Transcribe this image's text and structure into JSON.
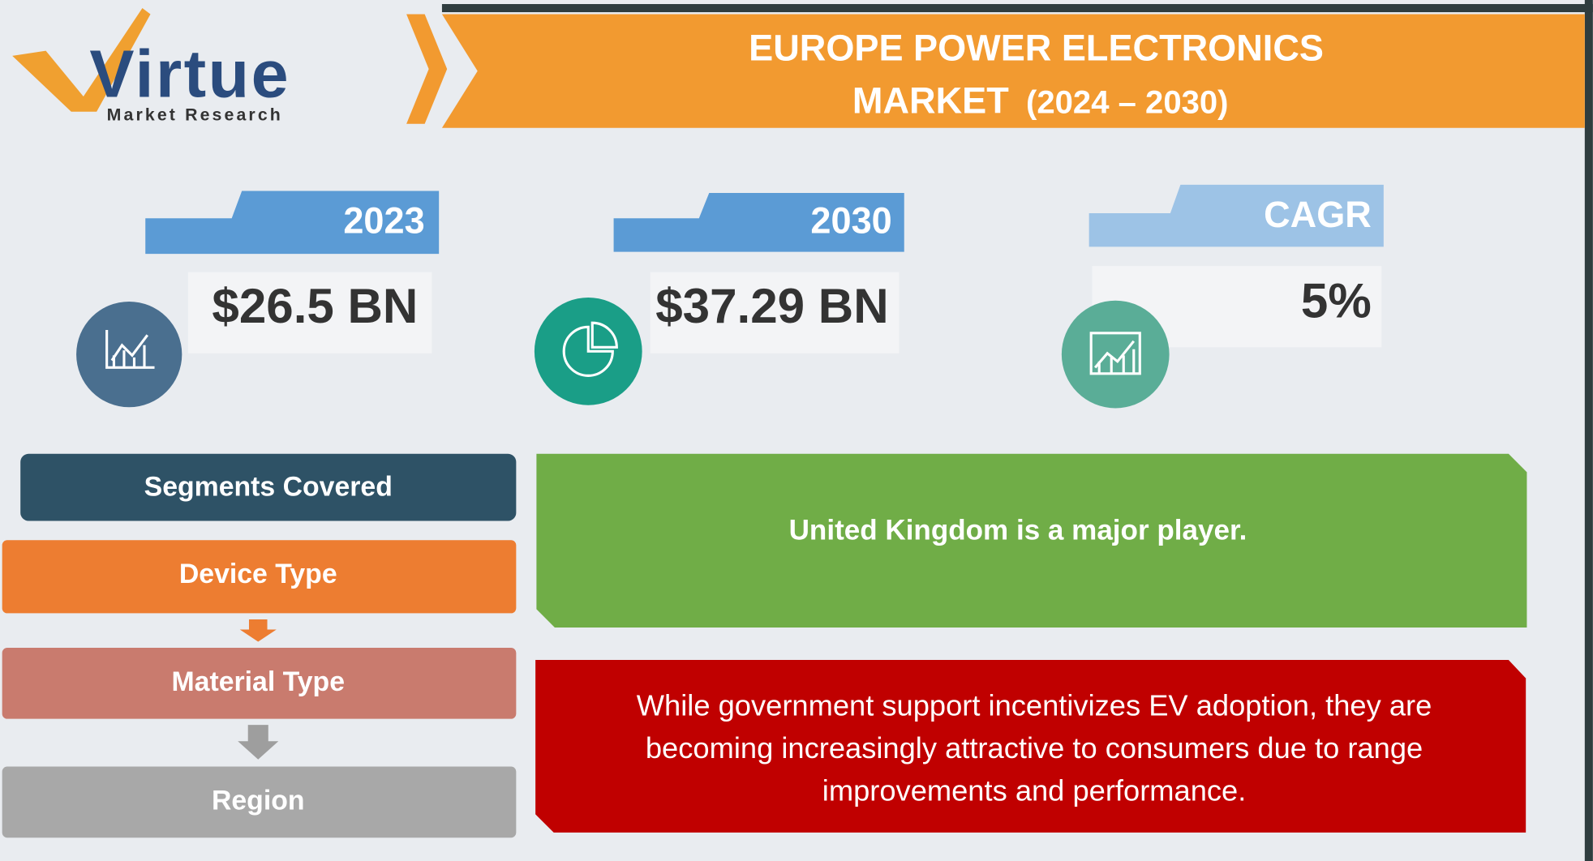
{
  "logo": {
    "brand": "Virtue",
    "tagline": "Market Research"
  },
  "header": {
    "title": "EUROPE POWER ELECTRONICS",
    "subtitle": "MARKET",
    "period": "(2024 – 2030)"
  },
  "stats": [
    {
      "label": "2023",
      "value": "$26.5 BN"
    },
    {
      "label": "2030",
      "value": "$37.29 BN"
    },
    {
      "label": "CAGR",
      "value": "5%"
    }
  ],
  "segments": {
    "heading": "Segments Covered",
    "items": [
      "Device Type",
      "Material Type",
      "Region"
    ]
  },
  "highlights": [
    {
      "lines": [
        "United Kingdom is a major player."
      ]
    },
    {
      "lines": [
        "While government support incentivizes EV adoption, they are",
        "becoming increasingly attractive to consumers due to range",
        "improvements and performance."
      ]
    }
  ]
}
